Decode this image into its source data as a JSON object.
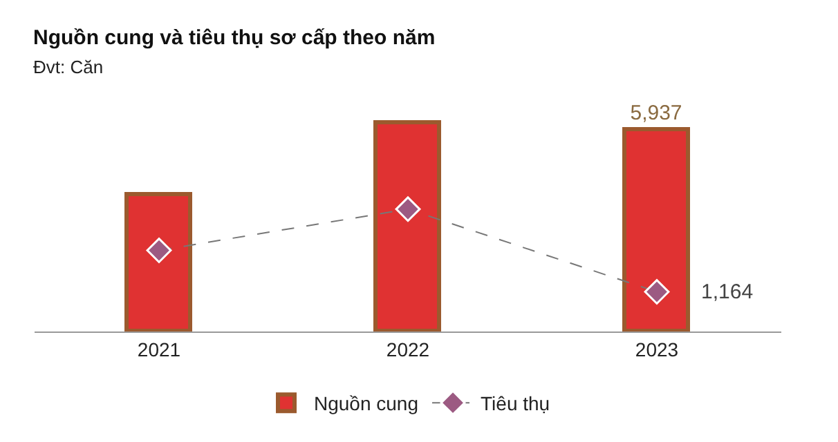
{
  "chart_data": {
    "type": "bar",
    "title": "Nguồn cung và tiêu thụ sơ cấp theo năm",
    "subtitle": "Đvt: Căn",
    "categories": [
      "2021",
      "2022",
      "2023"
    ],
    "series": [
      {
        "name": "Nguồn cung",
        "color": "#e03232",
        "values": [
          4020,
          6130,
          5937
        ],
        "value_labels": [
          null,
          null,
          "5,937"
        ]
      },
      {
        "name": "Tiêu thụ",
        "type": "line",
        "color": "#9c5a82",
        "values": [
          2380,
          3590,
          1164
        ],
        "value_labels": [
          null,
          null,
          "1,164"
        ],
        "marker": "diamond",
        "line_style": "dashed"
      }
    ],
    "grid": false,
    "legend": "bottom"
  }
}
